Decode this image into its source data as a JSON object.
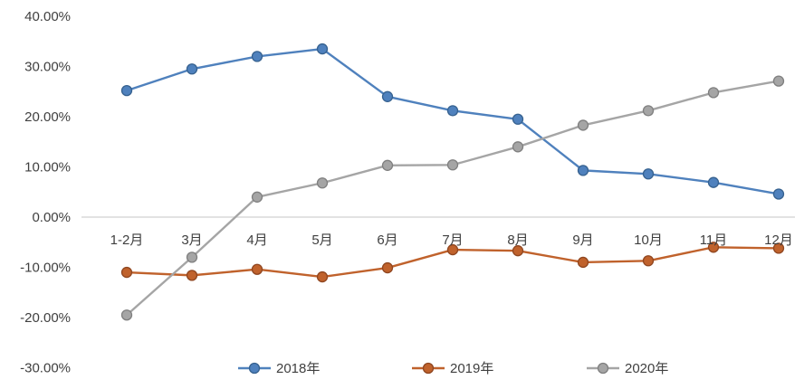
{
  "chart_data": {
    "type": "line",
    "title": "",
    "xlabel": "",
    "ylabel": "",
    "categories": [
      "1-2月",
      "3月",
      "4月",
      "5月",
      "6月",
      "7月",
      "8月",
      "9月",
      "10月",
      "11月",
      "12月"
    ],
    "series": [
      {
        "name": "2018年",
        "color": "#4f81bd",
        "marker_stroke": "#36618f",
        "values": [
          25.2,
          29.5,
          32.0,
          33.5,
          24.0,
          21.2,
          19.5,
          9.3,
          8.6,
          6.9,
          4.6
        ]
      },
      {
        "name": "2019年",
        "color": "#c0622c",
        "marker_stroke": "#8f4620",
        "values": [
          -11.0,
          -11.6,
          -10.4,
          -11.9,
          -10.1,
          -6.5,
          -6.7,
          -9.0,
          -8.7,
          -6.0,
          -6.2
        ]
      },
      {
        "name": "2020年",
        "color": "#a5a5a5",
        "marker_stroke": "#7f7f7f",
        "values": [
          -19.5,
          -8.0,
          4.0,
          6.8,
          10.3,
          10.4,
          14.0,
          18.3,
          21.2,
          24.8,
          27.1
        ]
      }
    ],
    "y_ticks": [
      40,
      30,
      20,
      10,
      0,
      -10,
      -20,
      -30
    ],
    "y_tick_format": "percent_2dp",
    "ylim": [
      -30,
      40
    ],
    "grid": "off",
    "zero_axis_color": "#d9d9d9",
    "legend_position": "bottom"
  },
  "layout_hint": {
    "note": "x category labels are anchored just below the zero axis line, legend centered at bottom"
  }
}
